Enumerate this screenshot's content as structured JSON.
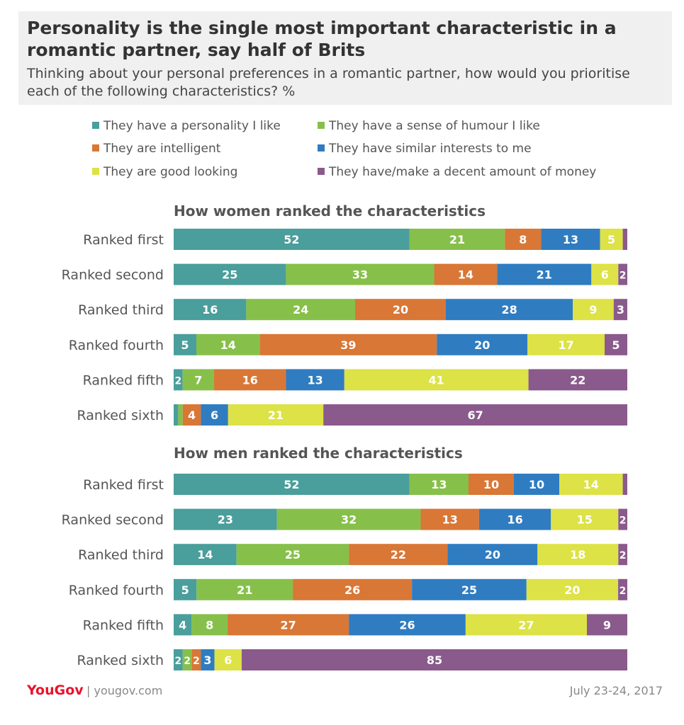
{
  "header": {
    "title": "Personality is the single most important characteristic in a romantic partner, say half of Brits",
    "subtitle": "Thinking about your personal preferences in a romantic partner, how would you prioritise each of the following characteristics? %"
  },
  "legend": [
    {
      "label": "They have a personality I like",
      "color": "#4a9e9b"
    },
    {
      "label": "They have a sense of humour I like",
      "color": "#86c04a"
    },
    {
      "label": "They are intelligent",
      "color": "#d97736"
    },
    {
      "label": "They have similar interests to me",
      "color": "#2f7cc1"
    },
    {
      "label": "They are good looking",
      "color": "#dde246"
    },
    {
      "label": "They have/make a decent amount of money",
      "color": "#8a5a8c"
    }
  ],
  "chart_data": [
    {
      "type": "bar",
      "stacked": true,
      "orientation": "horizontal",
      "title": "How women ranked the characteristics",
      "categories": [
        "Ranked first",
        "Ranked second",
        "Ranked third",
        "Ranked fourth",
        "Ranked fifth",
        "Ranked sixth"
      ],
      "series": [
        {
          "name": "They have a personality I like",
          "values": [
            52,
            25,
            16,
            5,
            2,
            1
          ]
        },
        {
          "name": "They have a sense of humour I like",
          "values": [
            21,
            33,
            24,
            14,
            7,
            1
          ]
        },
        {
          "name": "They are intelligent",
          "values": [
            8,
            14,
            20,
            39,
            16,
            4
          ]
        },
        {
          "name": "They have similar interests to me",
          "values": [
            13,
            21,
            28,
            20,
            13,
            6
          ]
        },
        {
          "name": "They are good looking",
          "values": [
            5,
            6,
            9,
            17,
            41,
            21
          ]
        },
        {
          "name": "They have/make a decent amount of money",
          "values": [
            1,
            2,
            3,
            5,
            22,
            67
          ]
        }
      ]
    },
    {
      "type": "bar",
      "stacked": true,
      "orientation": "horizontal",
      "title": "How men ranked the characteristics",
      "categories": [
        "Ranked first",
        "Ranked second",
        "Ranked third",
        "Ranked fourth",
        "Ranked fifth",
        "Ranked sixth"
      ],
      "series": [
        {
          "name": "They have a personality I like",
          "values": [
            52,
            23,
            14,
            5,
            4,
            2
          ]
        },
        {
          "name": "They have a sense of humour I like",
          "values": [
            13,
            32,
            25,
            21,
            8,
            2
          ]
        },
        {
          "name": "They are intelligent",
          "values": [
            10,
            13,
            22,
            26,
            27,
            2
          ]
        },
        {
          "name": "They have similar interests to me",
          "values": [
            10,
            16,
            20,
            25,
            26,
            3
          ]
        },
        {
          "name": "They are good looking",
          "values": [
            14,
            15,
            18,
            20,
            27,
            6
          ]
        },
        {
          "name": "They have/make a decent amount of money",
          "values": [
            1,
            2,
            2,
            2,
            9,
            85
          ]
        }
      ]
    }
  ],
  "footer": {
    "logo": "YouGov",
    "site": "| yougov.com",
    "date": "July 23-24, 2017"
  }
}
